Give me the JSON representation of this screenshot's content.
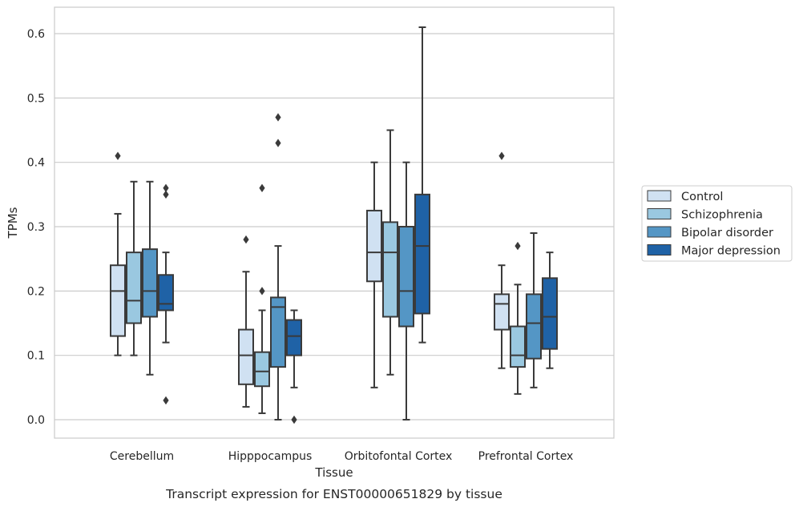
{
  "chart_data": {
    "type": "box",
    "title": "Transcript expression for ENST00000651829 by tissue",
    "xlabel": "Tissue",
    "ylabel": "TPMs",
    "ylim": [
      -0.03,
      0.64
    ],
    "yticks": [
      0.0,
      0.1,
      0.2,
      0.3,
      0.4,
      0.5,
      0.6
    ],
    "ytick_labels": [
      "0.0",
      "0.1",
      "0.2",
      "0.3",
      "0.4",
      "0.5",
      "0.6"
    ],
    "grid": "horizontal",
    "legend_position": "right",
    "categories": [
      "Cerebellum",
      "Hipppocampus",
      "Orbitofontal Cortex",
      "Prefrontal Cortex"
    ],
    "series": [
      {
        "name": "Control",
        "color": "#d0e1f2",
        "boxes": [
          {
            "whislo": 0.1,
            "q1": 0.13,
            "med": 0.2,
            "q3": 0.24,
            "whishi": 0.32,
            "fliers": [
              0.41
            ]
          },
          {
            "whislo": 0.02,
            "q1": 0.055,
            "med": 0.1,
            "q3": 0.14,
            "whishi": 0.23,
            "fliers": [
              0.28
            ]
          },
          {
            "whislo": 0.05,
            "q1": 0.215,
            "med": 0.26,
            "q3": 0.325,
            "whishi": 0.4,
            "fliers": []
          },
          {
            "whislo": 0.08,
            "q1": 0.14,
            "med": 0.18,
            "q3": 0.195,
            "whishi": 0.24,
            "fliers": [
              0.41
            ]
          }
        ]
      },
      {
        "name": "Schizophrenia",
        "color": "#9ac8e0",
        "boxes": [
          {
            "whislo": 0.1,
            "q1": 0.15,
            "med": 0.185,
            "q3": 0.26,
            "whishi": 0.37,
            "fliers": []
          },
          {
            "whislo": 0.01,
            "q1": 0.052,
            "med": 0.075,
            "q3": 0.105,
            "whishi": 0.17,
            "fliers": [
              0.2,
              0.36
            ]
          },
          {
            "whislo": 0.07,
            "q1": 0.16,
            "med": 0.26,
            "q3": 0.307,
            "whishi": 0.45,
            "fliers": []
          },
          {
            "whislo": 0.04,
            "q1": 0.082,
            "med": 0.1,
            "q3": 0.145,
            "whishi": 0.21,
            "fliers": [
              0.27
            ]
          }
        ]
      },
      {
        "name": "Bipolar disorder",
        "color": "#5496c5",
        "boxes": [
          {
            "whislo": 0.07,
            "q1": 0.16,
            "med": 0.2,
            "q3": 0.265,
            "whishi": 0.37,
            "fliers": []
          },
          {
            "whislo": 0.0,
            "q1": 0.082,
            "med": 0.175,
            "q3": 0.19,
            "whishi": 0.27,
            "fliers": [
              0.43,
              0.47
            ]
          },
          {
            "whislo": 0.0,
            "q1": 0.145,
            "med": 0.2,
            "q3": 0.3,
            "whishi": 0.4,
            "fliers": []
          },
          {
            "whislo": 0.05,
            "q1": 0.095,
            "med": 0.15,
            "q3": 0.195,
            "whishi": 0.29,
            "fliers": []
          }
        ]
      },
      {
        "name": "Major depression",
        "color": "#1f62a6",
        "boxes": [
          {
            "whislo": 0.12,
            "q1": 0.17,
            "med": 0.18,
            "q3": 0.225,
            "whishi": 0.26,
            "fliers": [
              0.03,
              0.35,
              0.36
            ]
          },
          {
            "whislo": 0.05,
            "q1": 0.1,
            "med": 0.13,
            "q3": 0.155,
            "whishi": 0.17,
            "fliers": [
              0.0
            ]
          },
          {
            "whislo": 0.12,
            "q1": 0.165,
            "med": 0.27,
            "q3": 0.35,
            "whishi": 0.61,
            "fliers": []
          },
          {
            "whislo": 0.08,
            "q1": 0.11,
            "med": 0.16,
            "q3": 0.22,
            "whishi": 0.26,
            "fliers": []
          }
        ]
      }
    ]
  }
}
